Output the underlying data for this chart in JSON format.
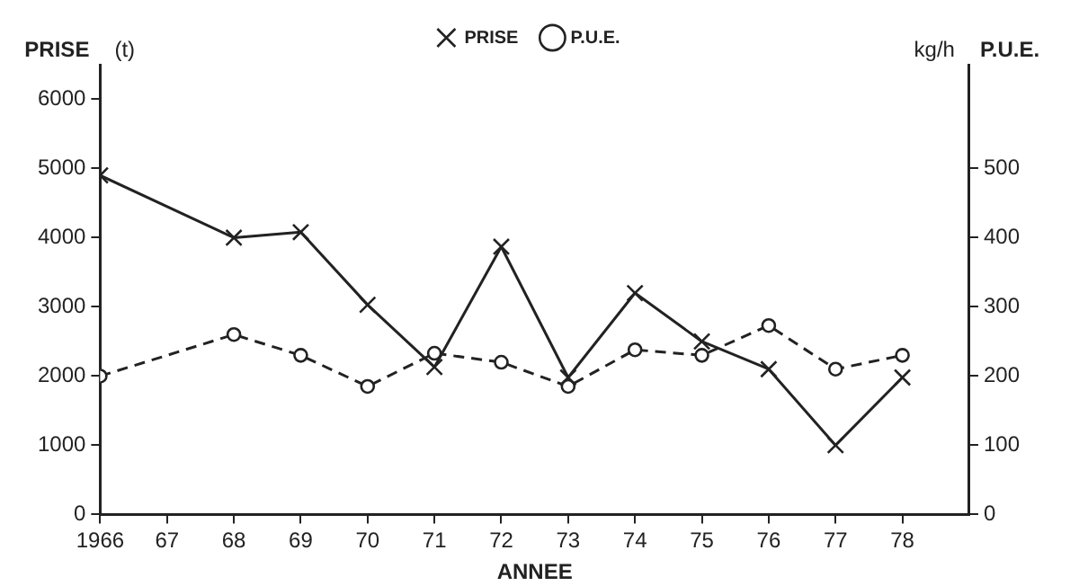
{
  "chart_data": {
    "type": "line",
    "xlabel": "ANNEE",
    "ylabel": "PRISE",
    "y2label": "P.U.E.",
    "annotations": [
      "(t)",
      "kg/h"
    ],
    "x": [
      1966,
      1968,
      1969,
      1970,
      1971,
      1972,
      1973,
      1974,
      1975,
      1976,
      1977,
      1978
    ],
    "series": [
      {
        "name": "PRISE",
        "color": "#222222",
        "marker": "cross",
        "line_style": "solid",
        "values": [
          4900,
          4000,
          4080,
          3030,
          2130,
          3870,
          1980,
          3200,
          2500,
          2100,
          1000,
          1980
        ]
      },
      {
        "name": "P.U.E.",
        "color": "#222222",
        "marker": "circle",
        "line_style": "dashed",
        "axis": "y2",
        "values": [
          200,
          260,
          230,
          185,
          233,
          220,
          185,
          238,
          230,
          273,
          210,
          230
        ]
      }
    ],
    "xlim": [
      1966,
      1979
    ],
    "xticks": [
      {
        "value": 1966,
        "label": "1966"
      },
      {
        "value": 1967,
        "label": "67"
      },
      {
        "value": 1968,
        "label": "68"
      },
      {
        "value": 1969,
        "label": "69"
      },
      {
        "value": 1970,
        "label": "70"
      },
      {
        "value": 1971,
        "label": "71"
      },
      {
        "value": 1972,
        "label": "72"
      },
      {
        "value": 1973,
        "label": "73"
      },
      {
        "value": 1974,
        "label": "74"
      },
      {
        "value": 1975,
        "label": "75"
      },
      {
        "value": 1976,
        "label": "76"
      },
      {
        "value": 1977,
        "label": "77"
      },
      {
        "value": 1978,
        "label": "78"
      }
    ],
    "ylim": [
      0,
      6500
    ],
    "yticks": [
      0,
      1000,
      2000,
      3000,
      4000,
      5000,
      6000
    ],
    "y2lim": [
      0,
      650
    ],
    "y2ticks": [
      0,
      100,
      200,
      300,
      400,
      500
    ],
    "grid": false,
    "legend": "top left"
  }
}
